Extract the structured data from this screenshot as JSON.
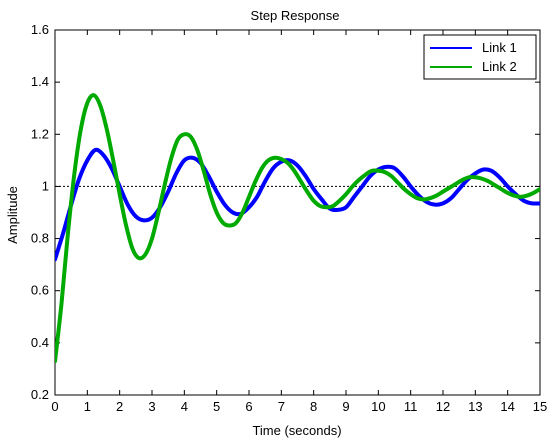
{
  "chart_data": {
    "type": "line",
    "title": "Step Response",
    "xlabel": "Time (seconds)",
    "ylabel": "Amplitude",
    "xlim": [
      0,
      15
    ],
    "ylim": [
      0.2,
      1.6
    ],
    "xticks": [
      0,
      1,
      2,
      3,
      4,
      5,
      6,
      7,
      8,
      9,
      10,
      11,
      12,
      13,
      14,
      15
    ],
    "yticks": [
      0.2,
      0.4,
      0.6,
      0.8,
      1,
      1.2,
      1.4,
      1.6
    ],
    "reference_line": {
      "y": 1,
      "style": "dotted",
      "color": "#000000"
    },
    "legend_position": "top-right",
    "grid": false,
    "series": [
      {
        "name": "Link 1",
        "color": "#0000ff",
        "points": [
          [
            0,
            0.72
          ],
          [
            0.25,
            0.82
          ],
          [
            0.5,
            0.93
          ],
          [
            0.75,
            1.03
          ],
          [
            1,
            1.1
          ],
          [
            1.25,
            1.14
          ],
          [
            1.5,
            1.12
          ],
          [
            1.75,
            1.07
          ],
          [
            2,
            1.0
          ],
          [
            2.25,
            0.93
          ],
          [
            2.5,
            0.885
          ],
          [
            2.75,
            0.87
          ],
          [
            3,
            0.88
          ],
          [
            3.25,
            0.92
          ],
          [
            3.5,
            0.98
          ],
          [
            3.75,
            1.05
          ],
          [
            4,
            1.1
          ],
          [
            4.25,
            1.11
          ],
          [
            4.5,
            1.09
          ],
          [
            4.75,
            1.04
          ],
          [
            5,
            0.98
          ],
          [
            5.25,
            0.93
          ],
          [
            5.5,
            0.9
          ],
          [
            5.75,
            0.895
          ],
          [
            6,
            0.92
          ],
          [
            6.25,
            0.96
          ],
          [
            6.5,
            1.02
          ],
          [
            6.75,
            1.07
          ],
          [
            7,
            1.095
          ],
          [
            7.25,
            1.1
          ],
          [
            7.5,
            1.08
          ],
          [
            7.75,
            1.04
          ],
          [
            8,
            0.99
          ],
          [
            8.25,
            0.95
          ],
          [
            8.5,
            0.915
          ],
          [
            8.75,
            0.91
          ],
          [
            9,
            0.92
          ],
          [
            9.25,
            0.96
          ],
          [
            9.5,
            1.0
          ],
          [
            9.75,
            1.04
          ],
          [
            10,
            1.065
          ],
          [
            10.25,
            1.075
          ],
          [
            10.5,
            1.07
          ],
          [
            10.75,
            1.04
          ],
          [
            11,
            1.0
          ],
          [
            11.25,
            0.965
          ],
          [
            11.5,
            0.94
          ],
          [
            11.75,
            0.93
          ],
          [
            12,
            0.935
          ],
          [
            12.25,
            0.955
          ],
          [
            12.5,
            0.99
          ],
          [
            12.75,
            1.025
          ],
          [
            13,
            1.05
          ],
          [
            13.25,
            1.065
          ],
          [
            13.5,
            1.06
          ],
          [
            13.75,
            1.035
          ],
          [
            14,
            1.0
          ],
          [
            14.25,
            0.97
          ],
          [
            14.5,
            0.945
          ],
          [
            14.75,
            0.935
          ],
          [
            15,
            0.935
          ]
        ]
      },
      {
        "name": "Link 2",
        "color": "#00aa00",
        "points": [
          [
            0,
            0.33
          ],
          [
            0.2,
            0.55
          ],
          [
            0.4,
            0.82
          ],
          [
            0.6,
            1.05
          ],
          [
            0.8,
            1.22
          ],
          [
            1,
            1.32
          ],
          [
            1.2,
            1.35
          ],
          [
            1.4,
            1.31
          ],
          [
            1.6,
            1.22
          ],
          [
            1.8,
            1.1
          ],
          [
            2,
            0.97
          ],
          [
            2.2,
            0.85
          ],
          [
            2.4,
            0.76
          ],
          [
            2.6,
            0.725
          ],
          [
            2.8,
            0.74
          ],
          [
            3,
            0.8
          ],
          [
            3.2,
            0.9
          ],
          [
            3.4,
            1.01
          ],
          [
            3.6,
            1.11
          ],
          [
            3.8,
            1.18
          ],
          [
            4,
            1.2
          ],
          [
            4.2,
            1.19
          ],
          [
            4.4,
            1.14
          ],
          [
            4.6,
            1.06
          ],
          [
            4.8,
            0.97
          ],
          [
            5,
            0.9
          ],
          [
            5.2,
            0.86
          ],
          [
            5.4,
            0.85
          ],
          [
            5.6,
            0.86
          ],
          [
            5.8,
            0.9
          ],
          [
            6,
            0.96
          ],
          [
            6.2,
            1.02
          ],
          [
            6.4,
            1.07
          ],
          [
            6.6,
            1.1
          ],
          [
            6.8,
            1.11
          ],
          [
            7,
            1.105
          ],
          [
            7.2,
            1.09
          ],
          [
            7.4,
            1.06
          ],
          [
            7.6,
            1.02
          ],
          [
            7.8,
            0.98
          ],
          [
            8,
            0.945
          ],
          [
            8.2,
            0.925
          ],
          [
            8.4,
            0.92
          ],
          [
            8.6,
            0.925
          ],
          [
            8.8,
            0.945
          ],
          [
            9,
            0.97
          ],
          [
            9.2,
            1.0
          ],
          [
            9.4,
            1.025
          ],
          [
            9.6,
            1.045
          ],
          [
            9.8,
            1.06
          ],
          [
            10,
            1.06
          ],
          [
            10.2,
            1.055
          ],
          [
            10.4,
            1.04
          ],
          [
            10.6,
            1.015
          ],
          [
            10.8,
            0.99
          ],
          [
            11,
            0.97
          ],
          [
            11.2,
            0.955
          ],
          [
            11.4,
            0.95
          ],
          [
            11.6,
            0.955
          ],
          [
            11.8,
            0.965
          ],
          [
            12,
            0.98
          ],
          [
            12.2,
            0.995
          ],
          [
            12.4,
            1.01
          ],
          [
            12.6,
            1.025
          ],
          [
            12.8,
            1.035
          ],
          [
            13,
            1.035
          ],
          [
            13.2,
            1.03
          ],
          [
            13.4,
            1.02
          ],
          [
            13.6,
            1.005
          ],
          [
            13.8,
            0.99
          ],
          [
            14,
            0.975
          ],
          [
            14.2,
            0.965
          ],
          [
            14.4,
            0.96
          ],
          [
            14.6,
            0.965
          ],
          [
            14.8,
            0.975
          ],
          [
            15,
            0.99
          ]
        ]
      }
    ]
  }
}
